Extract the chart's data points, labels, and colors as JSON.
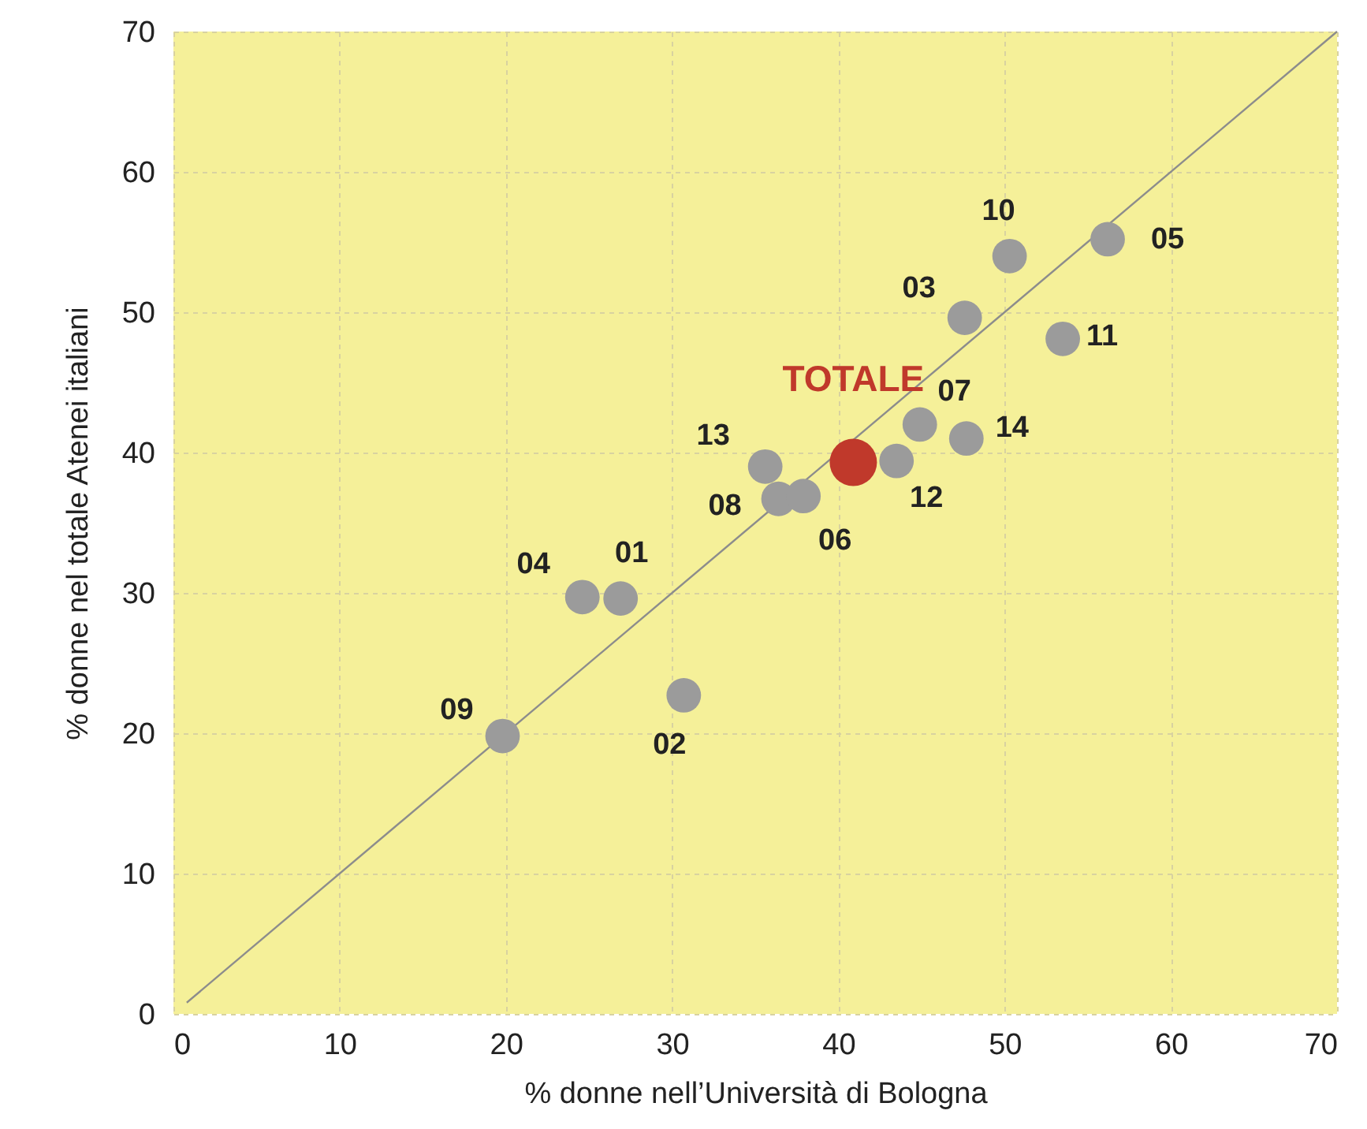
{
  "chart_data": {
    "type": "scatter",
    "xlabel": "% donne nell’Università di Bologna",
    "ylabel": "% donne nel totale Atenei italiani",
    "xlim": [
      0,
      70
    ],
    "ylim": [
      0,
      70
    ],
    "xticks": [
      0,
      10,
      20,
      30,
      40,
      50,
      60,
      70
    ],
    "yticks": [
      0,
      10,
      20,
      30,
      40,
      50,
      60,
      70
    ],
    "grid": true,
    "marker": "circle",
    "series": [
      {
        "color": "#8c8c8c",
        "type": "line",
        "marker": "none",
        "x": [
          0.8,
          70
        ],
        "values": [
          0.8,
          70
        ]
      },
      {
        "color": "#9b9b9b",
        "x": [
          26.9,
          24.6,
          30.7,
          19.8,
          35.6,
          36.4,
          37.9,
          43.5,
          44.9,
          47.7,
          47.6,
          50.3,
          53.5,
          56.2
        ],
        "values": [
          29.6,
          29.7,
          22.7,
          19.8,
          39.0,
          36.7,
          36.9,
          39.4,
          42.0,
          41.0,
          49.6,
          54.0,
          48.1,
          55.2
        ]
      },
      {
        "name": "TOTALE",
        "color": "#c0392b",
        "x": [
          40.9
        ],
        "values": [
          39.3
        ]
      }
    ],
    "annotations": [
      {
        "text": "01",
        "x": 26.9,
        "y": 29.6
      },
      {
        "text": "04",
        "x": 24.6,
        "y": 29.7
      },
      {
        "text": "02",
        "x": 30.7,
        "y": 22.7
      },
      {
        "text": "09",
        "x": 19.8,
        "y": 19.8
      },
      {
        "text": "13",
        "x": 35.6,
        "y": 39.0
      },
      {
        "text": "08",
        "x": 36.4,
        "y": 36.7
      },
      {
        "text": "06",
        "x": 37.9,
        "y": 36.9
      },
      {
        "text": "12",
        "x": 43.5,
        "y": 39.4
      },
      {
        "text": "07",
        "x": 44.9,
        "y": 42.0
      },
      {
        "text": "14",
        "x": 47.7,
        "y": 41.0
      },
      {
        "text": "03",
        "x": 47.6,
        "y": 49.6
      },
      {
        "text": "10",
        "x": 50.3,
        "y": 54.0
      },
      {
        "text": "11",
        "x": 53.5,
        "y": 48.1
      },
      {
        "text": "05",
        "x": 56.2,
        "y": 55.2
      }
    ]
  }
}
